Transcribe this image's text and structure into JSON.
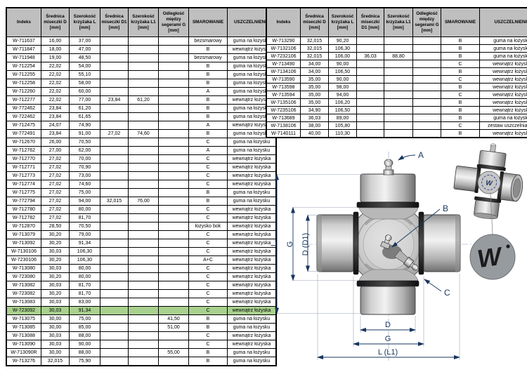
{
  "colors": {
    "header_bg": "#bfbfbf",
    "highlight_row_bg": "#a9d18e",
    "dimension_lines": "#17365d",
    "logo_circle_bg": "#969ba0"
  },
  "columns": [
    "Indeks",
    "Średnica miseczki D [mm]",
    "Szerokość krzyżaka L [mm]",
    "Średnica miseczki D1 [mm]",
    "Szerokość krzyżaka L1 [mm]",
    "Odległość między segerami G [mm]",
    "SMAROWANIE",
    "USZCZELNIENIE"
  ],
  "highlight": {
    "index": "W-723092"
  },
  "tables": {
    "left": {
      "rows": [
        [
          "W-711637",
          "16,00",
          "37,00",
          "",
          "",
          "",
          "bezsmarowy",
          "guma na łożysku"
        ],
        [
          "W-711847",
          "18,00",
          "47,00",
          "",
          "",
          "",
          "B",
          "wewnątrz łożyska"
        ],
        [
          "W-711948",
          "19,00",
          "48,50",
          "",
          "",
          "",
          "bezsmarowy",
          "guma na łożysku"
        ],
        [
          "W-712254",
          "22,02",
          "54,00",
          "",
          "",
          "",
          "B",
          "guma na łożysku"
        ],
        [
          "W-712255",
          "22,02",
          "55,10",
          "",
          "",
          "",
          "B",
          "guma na łożysku"
        ],
        [
          "W-712258",
          "22,02",
          "58,00",
          "",
          "",
          "",
          "B",
          "guma na łożysku"
        ],
        [
          "W-712260",
          "22,02",
          "60,00",
          "",
          "",
          "",
          "A",
          "guma na łożysku"
        ],
        [
          "W-712277",
          "22,02",
          "77,00",
          "23,84",
          "61,20",
          "",
          "B",
          "wewnątrz łożyska"
        ],
        [
          "W-772462",
          "23,84",
          "61,20",
          "",
          "",
          "",
          "B",
          "guma na łożysku"
        ],
        [
          "W-722462",
          "23,84",
          "61,65",
          "",
          "",
          "",
          "B",
          "guma na łożysku"
        ],
        [
          "W-712475",
          "24,07",
          "74,90",
          "",
          "",
          "",
          "A",
          "wewnątrz łożyska"
        ],
        [
          "W-772491",
          "23,84",
          "91,00",
          "27,02",
          "74,60",
          "",
          "B",
          "guma na łożysku"
        ],
        [
          "W-712670",
          "26,00",
          "70,50",
          "",
          "",
          "",
          "C",
          "guma na łożysku"
        ],
        [
          "W-712762",
          "27,00",
          "62,00",
          "",
          "",
          "",
          "A",
          "guma na łożysku"
        ],
        [
          "W-712770",
          "27,02",
          "70,00",
          "",
          "",
          "",
          "C",
          "wewnątrz łożyska"
        ],
        [
          "W-712771",
          "27,02",
          "70,90",
          "",
          "",
          "",
          "C",
          "wewnątrz łożyska"
        ],
        [
          "W-712773",
          "27,02",
          "73,00",
          "",
          "",
          "",
          "C",
          "wewnątrz łożyska"
        ],
        [
          "W-712774",
          "27,02",
          "74,60",
          "",
          "",
          "",
          "C",
          "wewnątrz łożyska"
        ],
        [
          "W-712775",
          "27,02",
          "75,00",
          "",
          "",
          "",
          "B",
          "guma na łożysku"
        ],
        [
          "W-772794",
          "27,02",
          "94,00",
          "32,015",
          "76,00",
          "",
          "B",
          "guma na łożysku"
        ],
        [
          "W-712780",
          "27,02",
          "80,00",
          "",
          "",
          "",
          "C",
          "wewnątrz łożyska"
        ],
        [
          "W-712782",
          "27,02",
          "81,70",
          "",
          "",
          "",
          "C",
          "wewnątrz łożyska"
        ],
        [
          "W-712870",
          "28,50",
          "70,50",
          "",
          "",
          "",
          "łożysko bok",
          "wewnątrz łożyska"
        ],
        [
          "W-713079",
          "30,20",
          "79,00",
          "",
          "",
          "",
          "C",
          "wewnątrz łożyska"
        ],
        [
          "W-713092",
          "30,20",
          "91,34",
          "",
          "",
          "",
          "C",
          "wewnątrz łożyska"
        ],
        [
          "W-7130106",
          "30,03",
          "106,30",
          "",
          "",
          "",
          "C",
          "wewnątrz łożyska"
        ],
        [
          "W-7230106",
          "30,20",
          "106,30",
          "",
          "",
          "",
          "A+C",
          "wewnątrz łożyska"
        ],
        [
          "W-713080",
          "30,03",
          "80,00",
          "",
          "",
          "",
          "C",
          "wewnątrz łożyska"
        ],
        [
          "W-723080",
          "30,20",
          "80,00",
          "",
          "",
          "",
          "C",
          "wewnątrz łożyska"
        ],
        [
          "W-713082",
          "30,03",
          "81,70",
          "",
          "",
          "",
          "C",
          "wewnątrz łożyska"
        ],
        [
          "W-723082",
          "30,20",
          "81,70",
          "",
          "",
          "",
          "C",
          "wewnątrz łożyska"
        ],
        [
          "W-713083",
          "30,03",
          "83,00",
          "",
          "",
          "",
          "C",
          "wewnątrz łożyska"
        ],
        [
          "W-723092",
          "30,03",
          "91,34",
          "",
          "",
          "",
          "C",
          "wewnątrz łożyska"
        ],
        [
          "W-713075",
          "30,00",
          "75,00",
          "",
          "",
          "41,50",
          "B",
          "guma na łożysku"
        ],
        [
          "W-713085",
          "30,00",
          "85,00",
          "",
          "",
          "51,00",
          "B",
          "guma na łożysku"
        ],
        [
          "W-713088",
          "30,03",
          "88,00",
          "",
          "",
          "",
          "C",
          "wewnątrz łożyska"
        ],
        [
          "W-713090",
          "30,03",
          "90,00",
          "",
          "",
          "",
          "C",
          "wewnątrz łożyska"
        ],
        [
          "W-713090R",
          "30,00",
          "88,00",
          "",
          "",
          "55,00",
          "B",
          "guma na łożysku"
        ],
        [
          "W-713276",
          "32,015",
          "75,90",
          "",
          "",
          "",
          "B",
          "guma na łożysku"
        ]
      ]
    },
    "right": {
      "rows": [
        [
          "W-713290",
          "32,015",
          "90,20",
          "",
          "",
          "",
          "B",
          "guma na łożysku"
        ],
        [
          "W-7132106",
          "32,015",
          "106,30",
          "",
          "",
          "",
          "B",
          "guma na łożysku"
        ],
        [
          "W-7232106",
          "32,015",
          "106,00",
          "36,03",
          "88,80",
          "",
          "B",
          "guma na łożysku"
        ],
        [
          "W-713490",
          "34,00",
          "90,00",
          "",
          "",
          "",
          "C",
          "wewnątrz łożyska"
        ],
        [
          "W-7134106",
          "34,00",
          "106,50",
          "",
          "",
          "",
          "B",
          "wewnątrz łożyska"
        ],
        [
          "W-713590",
          "35,00",
          "90,00",
          "",
          "",
          "",
          "C",
          "wewnątrz łożyska"
        ],
        [
          "W-713598",
          "35,00",
          "98,00",
          "",
          "",
          "",
          "B",
          "wewnątrz łożyska"
        ],
        [
          "W-713594",
          "35,00",
          "94,00",
          "",
          "",
          "",
          "C",
          "wewnątrz łożyska"
        ],
        [
          "W-7135106",
          "35,00",
          "106,20",
          "",
          "",
          "",
          "B",
          "wewnątrz łożyska"
        ],
        [
          "W-7235106",
          "34,90",
          "106,50",
          "",
          "",
          "",
          "B",
          "wewnątrz łożyska"
        ],
        [
          "W-713689",
          "36,03",
          "89,00",
          "",
          "",
          "",
          "B",
          "guma na łożysku"
        ],
        [
          "W-7138106",
          "38,00",
          "105,80",
          "",
          "",
          "",
          "C",
          "zestaw uszczelniający"
        ],
        [
          "W-7140111",
          "40,00",
          "110,30",
          "",
          "",
          "",
          "B",
          "wewnątrz łożyska"
        ]
      ]
    }
  },
  "diagram": {
    "callout_a": "A",
    "callout_b": "B",
    "callout_c": "C",
    "dim_l": "L",
    "dim_g": "G",
    "dim_d_d1": "D (D1)",
    "dim_d_bottom": "D",
    "dim_g_bottom": "G",
    "dim_l_l1": "L (L1)",
    "logo_letter": "W",
    "logo_letter_small": "W"
  }
}
